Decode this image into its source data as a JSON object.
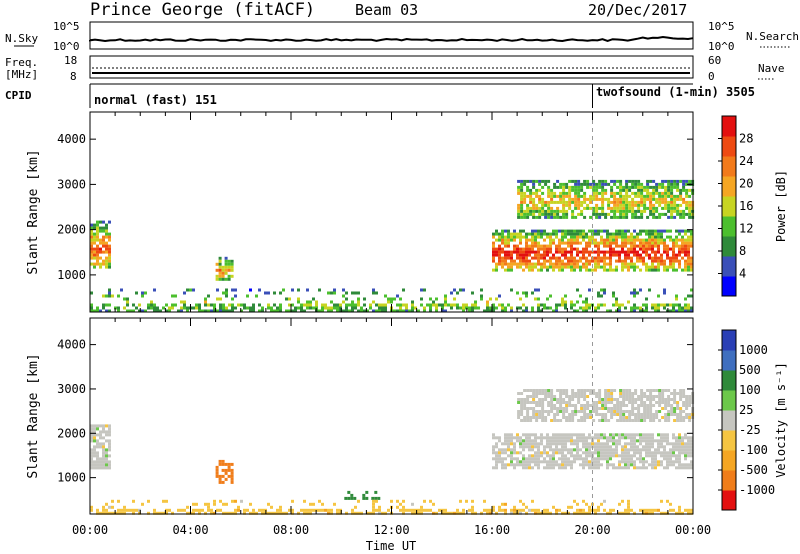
{
  "header": {
    "station": "Prince George (fitACF)",
    "beam": "Beam 03",
    "date": "20/Dec/2017"
  },
  "noise_panel": {
    "left_label": "N.Sky",
    "right_label": "N.Search",
    "left_ticks": [
      "10^5",
      "10^0"
    ],
    "right_ticks": [
      "10^5",
      "10^0"
    ]
  },
  "freq_panel": {
    "left_label_1": "Freq.",
    "left_label_2": "[MHz]",
    "right_label": "Nave",
    "left_ticks": [
      "18",
      "8"
    ],
    "right_ticks": [
      "60",
      "0"
    ]
  },
  "cpid_panel": {
    "label": "CPID",
    "segments": [
      "normal (fast) 151",
      "twofsound (1-min) 3505"
    ],
    "boundary_hours": [
      0,
      20,
      24
    ]
  },
  "chart_data": [
    {
      "type": "heatmap",
      "name": "power",
      "xlabel": "",
      "ylabel": "Slant Range [km]",
      "x_ticks": [
        "00:00",
        "04:00",
        "08:00",
        "12:00",
        "16:00",
        "20:00",
        "00:00"
      ],
      "xlim_hours": [
        0,
        24
      ],
      "y_ticks": [
        1000,
        2000,
        3000,
        4000
      ],
      "ylim_km": [
        180,
        4600
      ],
      "colorbar": {
        "label": "Power [dB]",
        "ticks": [
          "4",
          "8",
          "12",
          "16",
          "20",
          "24",
          "28"
        ],
        "range": [
          0,
          30
        ],
        "colors": [
          "#0000ff",
          "#3a4fb8",
          "#2f8a3a",
          "#4cbf2e",
          "#c7d422",
          "#f5a623",
          "#f27a1a",
          "#ee4a12",
          "#e31010"
        ]
      },
      "features": [
        {
          "t0": 0.0,
          "t1": 0.8,
          "r0": 1150,
          "r1": 2200,
          "level": 0.7
        },
        {
          "t0": 5.0,
          "t1": 5.6,
          "r0": 900,
          "r1": 1400,
          "level": 0.55
        },
        {
          "t0": 16.0,
          "t1": 24.0,
          "r0": 1100,
          "r1": 2000,
          "level": 0.85
        },
        {
          "t0": 17.0,
          "t1": 24.0,
          "r0": 2300,
          "r1": 3100,
          "level": 0.45
        },
        {
          "t0": 0.0,
          "t1": 24.0,
          "r0": 180,
          "r1": 700,
          "level": 0.3
        }
      ]
    },
    {
      "type": "heatmap",
      "name": "velocity",
      "xlabel": "Time UT",
      "ylabel": "Slant Range [km]",
      "x_ticks": [
        "00:00",
        "04:00",
        "08:00",
        "12:00",
        "16:00",
        "20:00",
        "00:00"
      ],
      "xlim_hours": [
        0,
        24
      ],
      "y_ticks": [
        1000,
        2000,
        3000,
        4000
      ],
      "ylim_km": [
        180,
        4600
      ],
      "colorbar": {
        "label": "Velocity [m s⁻¹]",
        "ticks": [
          "1000",
          "500",
          "100",
          "25",
          "-25",
          "-100",
          "-500",
          "-1000"
        ],
        "colors": [
          "#2a3fb5",
          "#3f6fbf",
          "#2f8a3a",
          "#6cc84a",
          "#c6c6c0",
          "#f5c542",
          "#f5a623",
          "#f07d1a",
          "#e31010"
        ]
      },
      "features": [
        {
          "t0": 0.0,
          "t1": 0.8,
          "r0": 1200,
          "r1": 2200,
          "value": 0
        },
        {
          "t0": 5.0,
          "t1": 5.6,
          "r0": 900,
          "r1": 1400,
          "value": -500
        },
        {
          "t0": 16.0,
          "t1": 24.0,
          "r0": 1200,
          "r1": 2000,
          "value": 0
        },
        {
          "t0": 17.0,
          "t1": 24.0,
          "r0": 2300,
          "r1": 3000,
          "value": 0
        },
        {
          "t0": 10.0,
          "t1": 11.5,
          "r0": 550,
          "r1": 700,
          "value": 100
        },
        {
          "t0": 0.0,
          "t1": 24.0,
          "r0": 180,
          "r1": 500,
          "value": -100
        }
      ]
    }
  ]
}
